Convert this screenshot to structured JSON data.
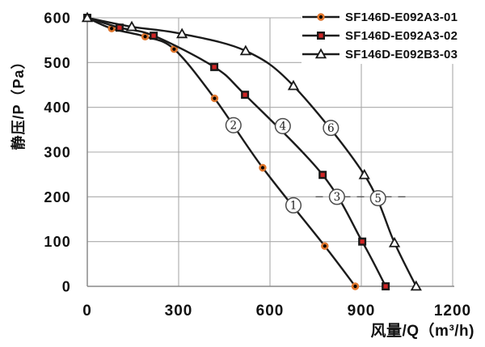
{
  "chart_data": {
    "type": "line",
    "title": "",
    "xlabel": "风量/Q（m³/h)",
    "ylabel": "静压/P（Pa）",
    "xlim": [
      0,
      1200
    ],
    "ylim": [
      0,
      600
    ],
    "xticks": [
      0,
      300,
      600,
      900,
      1200
    ],
    "yticks": [
      0,
      100,
      200,
      300,
      400,
      500,
      600
    ],
    "grid": true,
    "legend_position": "top-right",
    "line_color": "#1b1b1b",
    "grid_color": "#a9a9a9",
    "axis_color": "#8a8a8a",
    "annotation_edge_color": "#4c4c4c",
    "series": [
      {
        "name": "SF146D-E092A3-01",
        "marker": "filled-circle",
        "marker_fill": "#000000",
        "marker_ring": "#e0762d",
        "points": [
          [
            0,
            600
          ],
          [
            80,
            576
          ],
          [
            190,
            558
          ],
          [
            285,
            530
          ],
          [
            418,
            420
          ],
          [
            576,
            265
          ],
          [
            780,
            90
          ],
          [
            880,
            0
          ]
        ]
      },
      {
        "name": "SF146D-E092A3-02",
        "marker": "filled-square",
        "marker_fill": "#cf2525",
        "marker_edge": "#191919",
        "points": [
          [
            0,
            600
          ],
          [
            106,
            578
          ],
          [
            218,
            560
          ],
          [
            417,
            490
          ],
          [
            518,
            428
          ],
          [
            773,
            249
          ],
          [
            903,
            100
          ],
          [
            980,
            0
          ]
        ]
      },
      {
        "name": "SF146D-E092B3-03",
        "marker": "open-triangle",
        "marker_fill": "#ffffff",
        "marker_edge": "#191919",
        "points": [
          [
            0,
            600
          ],
          [
            146,
            580
          ],
          [
            311,
            564
          ],
          [
            520,
            526
          ],
          [
            677,
            448
          ],
          [
            910,
            249
          ],
          [
            1009,
            97
          ],
          [
            1080,
            0
          ]
        ]
      }
    ],
    "annotations": [
      {
        "label": "1",
        "x": 677,
        "y": 181
      },
      {
        "label": "2",
        "x": 480,
        "y": 360
      },
      {
        "label": "3",
        "x": 820,
        "y": 200
      },
      {
        "label": "4",
        "x": 642,
        "y": 358
      },
      {
        "label": "5",
        "x": 955,
        "y": 197
      },
      {
        "label": "6",
        "x": 800,
        "y": 354
      }
    ],
    "dash_segment": {
      "y": 200,
      "x1": 750,
      "x2": 1055
    }
  }
}
